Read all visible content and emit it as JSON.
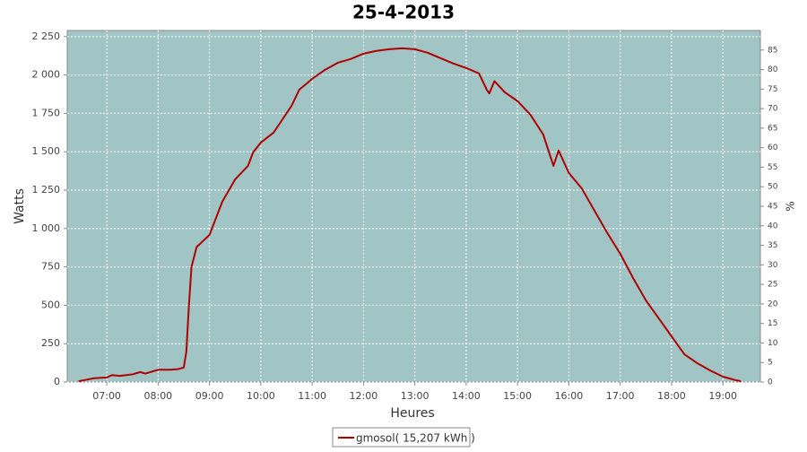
{
  "chart_data": {
    "type": "line",
    "title": "25-4-2013",
    "xlabel": "Heures",
    "ylabel": "Watts",
    "y2label": "%",
    "x": [
      6.45,
      6.6,
      6.75,
      7.0,
      7.1,
      7.25,
      7.5,
      7.65,
      7.75,
      7.9,
      8.0,
      8.25,
      8.4,
      8.5,
      8.55,
      8.6,
      8.65,
      8.75,
      9.0,
      9.25,
      9.5,
      9.75,
      9.85,
      10.0,
      10.25,
      10.4,
      10.6,
      10.75,
      10.9,
      11.0,
      11.25,
      11.5,
      11.75,
      12.0,
      12.25,
      12.5,
      12.75,
      13.0,
      13.25,
      13.5,
      13.75,
      14.0,
      14.25,
      14.4,
      14.45,
      14.55,
      14.75,
      15.0,
      15.25,
      15.5,
      15.7,
      15.8,
      16.0,
      16.25,
      16.5,
      16.75,
      17.0,
      17.25,
      17.5,
      17.75,
      18.0,
      18.25,
      18.5,
      18.75,
      19.0,
      19.25,
      19.35
    ],
    "series": [
      {
        "name": "gmosol( 15,207 kWh )",
        "color": "#b00000",
        "values": [
          5,
          15,
          25,
          30,
          45,
          40,
          50,
          65,
          55,
          70,
          80,
          80,
          85,
          95,
          200,
          500,
          750,
          880,
          958,
          1175,
          1320,
          1408,
          1496,
          1560,
          1625,
          1700,
          1800,
          1905,
          1946,
          1975,
          2034,
          2080,
          2104,
          2139,
          2157,
          2168,
          2174,
          2168,
          2145,
          2110,
          2075,
          2046,
          2010,
          1905,
          1880,
          1960,
          1888,
          1830,
          1742,
          1613,
          1408,
          1508,
          1362,
          1262,
          1116,
          970,
          836,
          678,
          532,
          415,
          298,
          181,
          123,
          76,
          35,
          12,
          5
        ]
      }
    ],
    "xlim": [
      6.23,
      19.73
    ],
    "xticks": [
      {
        "value": 7,
        "label": "07:00"
      },
      {
        "value": 8,
        "label": "08:00"
      },
      {
        "value": 9,
        "label": "09:00"
      },
      {
        "value": 10,
        "label": "10:00"
      },
      {
        "value": 11,
        "label": "11:00"
      },
      {
        "value": 12,
        "label": "12:00"
      },
      {
        "value": 13,
        "label": "13:00"
      },
      {
        "value": 14,
        "label": "14:00"
      },
      {
        "value": 15,
        "label": "15:00"
      },
      {
        "value": 16,
        "label": "16:00"
      },
      {
        "value": 17,
        "label": "17:00"
      },
      {
        "value": 18,
        "label": "18:00"
      },
      {
        "value": 19,
        "label": "19:00"
      }
    ],
    "ylim": [
      0,
      2290
    ],
    "yticks": [
      0,
      250,
      500,
      750,
      {
        "value": 1000,
        "label": "1 000"
      },
      {
        "value": 1250,
        "label": "1 250"
      },
      {
        "value": 1500,
        "label": "1 500"
      },
      {
        "value": 1750,
        "label": "1 750"
      },
      {
        "value": 2000,
        "label": "2 000"
      },
      {
        "value": 2250,
        "label": "2 250"
      }
    ],
    "y2lim": [
      0,
      90
    ],
    "y2ticks": [
      0,
      5,
      10,
      15,
      20,
      25,
      30,
      35,
      40,
      45,
      50,
      55,
      60,
      65,
      70,
      75,
      80,
      85
    ],
    "grid": true,
    "background": "#a1c4c4"
  }
}
